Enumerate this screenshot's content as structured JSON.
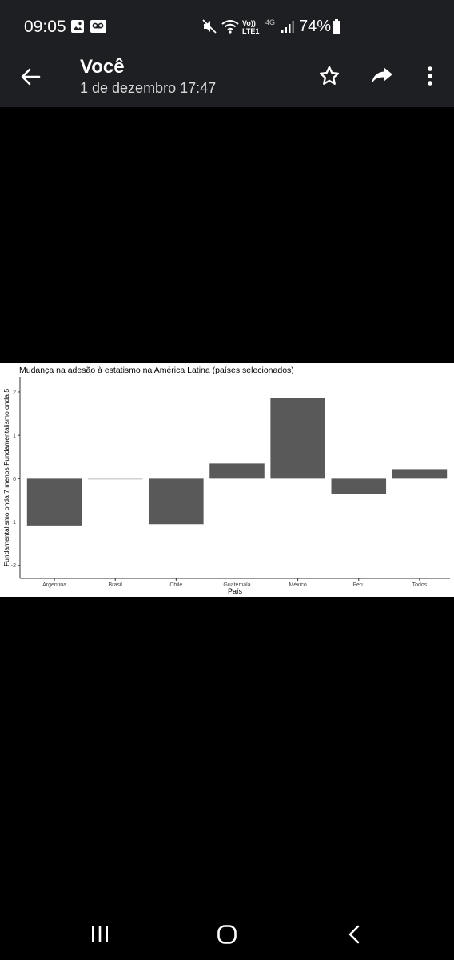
{
  "status_bar": {
    "time": "09:05",
    "volte_line1": "Vo))",
    "volte_line2": "LTE1",
    "network": "4G",
    "battery": "74%"
  },
  "app_bar": {
    "title": "Você",
    "subtitle": "1 de dezembro 17:47"
  },
  "chart_data": {
    "type": "bar",
    "title": "Mudança na adesão à estatismo na América Latina (países selecionados)",
    "xlabel": "País",
    "ylabel": "Fundamentalismo onda 7 menos Fundamentalismo onda 5",
    "categories": [
      "Argentina",
      "Brasil",
      "Chile",
      "Guatemala",
      "México",
      "Peru",
      "Todos"
    ],
    "values": [
      -1.08,
      0.0,
      -1.05,
      0.35,
      1.87,
      -0.35,
      0.22
    ],
    "ylim": [
      -2.3,
      2.35
    ],
    "yticks": [
      "-2",
      "-1",
      "0",
      "1",
      "2"
    ],
    "bar_color": "#595959",
    "grid": false,
    "legend": "none"
  }
}
